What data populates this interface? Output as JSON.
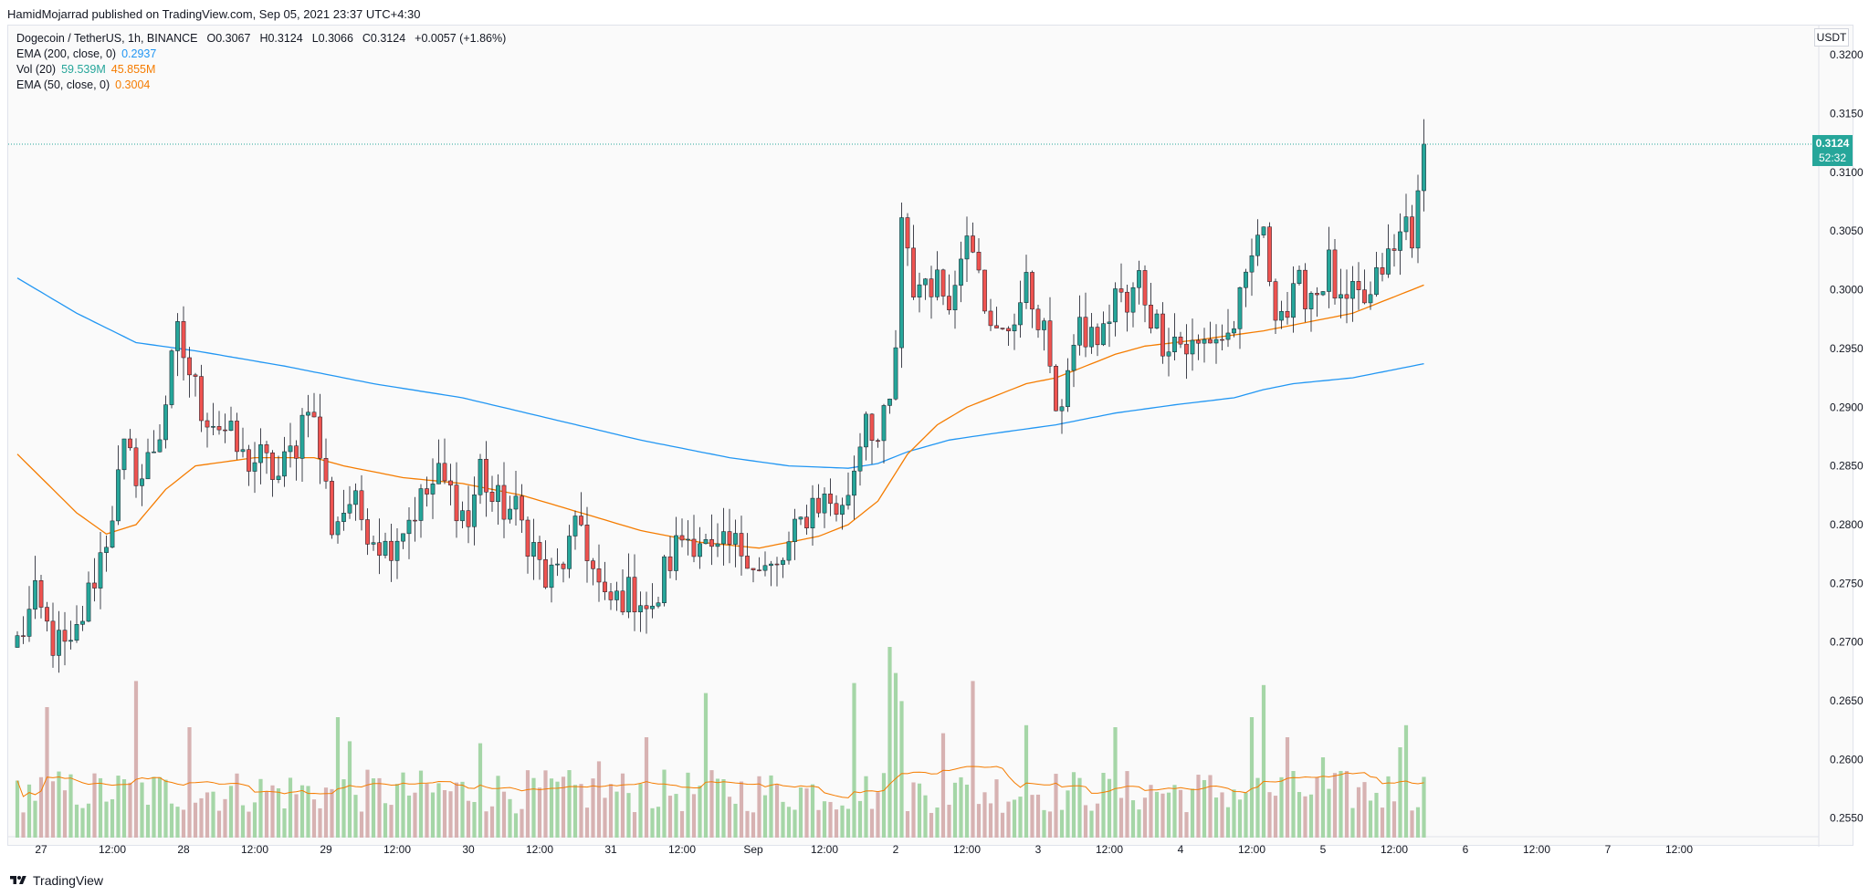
{
  "header": {
    "publish_line": "HamidMojarrad published on TradingView.com, Sep 05, 2021 23:37 UTC+4:30"
  },
  "legend": {
    "symbol": "Dogecoin / TetherUS, 1h, BINANCE",
    "open": "O0.3067",
    "high": "H0.3124",
    "low": "L0.3066",
    "close": "C0.3124",
    "change": "+0.0057 (+1.86%)",
    "ema200_label": "EMA (200, close, 0)",
    "ema200_value": "0.2937",
    "vol_label": "Vol (20)",
    "vol_value": "59.539M",
    "vol_ma_value": "45.855M",
    "ema50_label": "EMA (50, close, 0)",
    "ema50_value": "0.3004"
  },
  "footer": {
    "brand": "TradingView"
  },
  "price_axis": {
    "currency": "USDT"
  },
  "last_price": {
    "value": "0.3124",
    "countdown": "52:32"
  },
  "colors": {
    "up": "#26a69a",
    "down": "#ef5350",
    "vol_up": "#a5d6a7",
    "vol_down": "#d7b2b2",
    "ema200": "#2196f3",
    "ema50": "#f57c00",
    "vol_ma": "#f57c00",
    "axis_text": "#131722",
    "background": "#fafafa"
  },
  "chart_data": {
    "type": "candlestick",
    "interval": "1h",
    "ylim": [
      0.2535,
      0.3225
    ],
    "y_ticks": [
      0.32,
      0.315,
      0.31,
      0.305,
      0.3,
      0.295,
      0.29,
      0.285,
      0.28,
      0.275,
      0.27,
      0.265,
      0.26,
      0.255
    ],
    "y_tick_labels": [
      "0.3200",
      "0.3150",
      "0.3100",
      "0.3050",
      "0.3000",
      "0.2950",
      "0.2900",
      "0.2850",
      "0.2800",
      "0.2750",
      "0.2700",
      "0.2650",
      "0.2600",
      "0.2550"
    ],
    "x_ticks": [
      {
        "label": "27",
        "bar": 4
      },
      {
        "label": "12:00",
        "bar": 16
      },
      {
        "label": "28",
        "bar": 28
      },
      {
        "label": "12:00",
        "bar": 40
      },
      {
        "label": "29",
        "bar": 52
      },
      {
        "label": "12:00",
        "bar": 64
      },
      {
        "label": "30",
        "bar": 76
      },
      {
        "label": "12:00",
        "bar": 88
      },
      {
        "label": "31",
        "bar": 100
      },
      {
        "label": "12:00",
        "bar": 112
      },
      {
        "label": "Sep",
        "bar": 124
      },
      {
        "label": "12:00",
        "bar": 136
      },
      {
        "label": "2",
        "bar": 148
      },
      {
        "label": "12:00",
        "bar": 160
      },
      {
        "label": "3",
        "bar": 172
      },
      {
        "label": "12:00",
        "bar": 184
      },
      {
        "label": "4",
        "bar": 196
      },
      {
        "label": "12:00",
        "bar": 208
      },
      {
        "label": "5",
        "bar": 220
      },
      {
        "label": "12:00",
        "bar": 232
      },
      {
        "label": "6",
        "bar": 244
      },
      {
        "label": "12:00",
        "bar": 256
      },
      {
        "label": "7",
        "bar": 268
      },
      {
        "label": "12:00",
        "bar": 280
      }
    ],
    "last_price": 0.3124,
    "anchors": [
      [
        0,
        0.27
      ],
      [
        3,
        0.2735
      ],
      [
        6,
        0.27
      ],
      [
        9,
        0.269
      ],
      [
        12,
        0.274
      ],
      [
        15,
        0.279
      ],
      [
        18,
        0.286
      ],
      [
        21,
        0.284
      ],
      [
        24,
        0.288
      ],
      [
        27,
        0.296
      ],
      [
        29,
        0.293
      ],
      [
        31,
        0.29
      ],
      [
        35,
        0.288
      ],
      [
        38,
        0.2855
      ],
      [
        41,
        0.2855
      ],
      [
        44,
        0.284
      ],
      [
        47,
        0.287
      ],
      [
        49,
        0.291
      ],
      [
        51,
        0.286
      ],
      [
        53,
        0.28
      ],
      [
        56,
        0.282
      ],
      [
        59,
        0.28
      ],
      [
        62,
        0.278
      ],
      [
        65,
        0.28
      ],
      [
        68,
        0.282
      ],
      [
        71,
        0.284
      ],
      [
        74,
        0.282
      ],
      [
        76,
        0.28
      ],
      [
        78,
        0.285
      ],
      [
        80,
        0.282
      ],
      [
        84,
        0.281
      ],
      [
        87,
        0.278
      ],
      [
        89,
        0.275
      ],
      [
        91,
        0.276
      ],
      [
        93,
        0.278
      ],
      [
        95,
        0.28
      ],
      [
        97,
        0.276
      ],
      [
        99,
        0.273
      ],
      [
        102,
        0.274
      ],
      [
        105,
        0.274
      ],
      [
        107,
        0.272
      ],
      [
        109,
        0.276
      ],
      [
        112,
        0.279
      ],
      [
        115,
        0.279
      ],
      [
        117,
        0.277
      ],
      [
        120,
        0.278
      ],
      [
        123,
        0.278
      ],
      [
        125,
        0.276
      ],
      [
        128,
        0.276
      ],
      [
        131,
        0.279
      ],
      [
        134,
        0.282
      ],
      [
        137,
        0.282
      ],
      [
        139,
        0.281
      ],
      [
        141,
        0.285
      ],
      [
        143,
        0.29
      ],
      [
        145,
        0.287
      ],
      [
        147,
        0.29
      ],
      [
        148,
        0.295
      ],
      [
        149,
        0.305
      ],
      [
        151,
        0.3
      ],
      [
        153,
        0.301
      ],
      [
        156,
        0.3
      ],
      [
        158,
        0.3
      ],
      [
        160,
        0.306
      ],
      [
        162,
        0.303
      ],
      [
        164,
        0.296
      ],
      [
        166,
        0.296
      ],
      [
        168,
        0.298
      ],
      [
        170,
        0.3
      ],
      [
        172,
        0.298
      ],
      [
        174,
        0.294
      ],
      [
        175,
        0.288
      ],
      [
        177,
        0.294
      ],
      [
        179,
        0.296
      ],
      [
        181,
        0.296
      ],
      [
        183,
        0.296
      ],
      [
        185,
        0.3
      ],
      [
        187,
        0.298
      ],
      [
        189,
        0.301
      ],
      [
        191,
        0.298
      ],
      [
        193,
        0.296
      ],
      [
        195,
        0.296
      ],
      [
        197,
        0.295
      ],
      [
        199,
        0.295
      ],
      [
        201,
        0.296
      ],
      [
        204,
        0.296
      ],
      [
        207,
        0.3
      ],
      [
        209,
        0.305
      ],
      [
        210,
        0.304
      ],
      [
        212,
        0.299
      ],
      [
        214,
        0.298
      ],
      [
        216,
        0.3
      ],
      [
        219,
        0.3
      ],
      [
        221,
        0.302
      ],
      [
        223,
        0.298
      ],
      [
        225,
        0.299
      ],
      [
        228,
        0.299
      ],
      [
        230,
        0.302
      ],
      [
        232,
        0.303
      ],
      [
        234,
        0.306
      ],
      [
        235,
        0.305
      ],
      [
        236,
        0.307
      ],
      [
        237,
        0.3124
      ]
    ],
    "ema200_anchors": [
      [
        0,
        0.301
      ],
      [
        10,
        0.298
      ],
      [
        20,
        0.2955
      ],
      [
        30,
        0.2948
      ],
      [
        45,
        0.2935
      ],
      [
        60,
        0.292
      ],
      [
        75,
        0.2908
      ],
      [
        90,
        0.289
      ],
      [
        105,
        0.2872
      ],
      [
        120,
        0.2857
      ],
      [
        130,
        0.285
      ],
      [
        140,
        0.2848
      ],
      [
        145,
        0.2852
      ],
      [
        150,
        0.2862
      ],
      [
        157,
        0.2872
      ],
      [
        165,
        0.2878
      ],
      [
        175,
        0.2885
      ],
      [
        185,
        0.2895
      ],
      [
        195,
        0.2902
      ],
      [
        205,
        0.2908
      ],
      [
        210,
        0.2915
      ],
      [
        215,
        0.292
      ],
      [
        225,
        0.2925
      ],
      [
        237,
        0.2937
      ]
    ],
    "ema50_anchors": [
      [
        0,
        0.286
      ],
      [
        5,
        0.2835
      ],
      [
        10,
        0.281
      ],
      [
        15,
        0.2792
      ],
      [
        20,
        0.28
      ],
      [
        25,
        0.283
      ],
      [
        30,
        0.285
      ],
      [
        40,
        0.2857
      ],
      [
        50,
        0.2857
      ],
      [
        55,
        0.285
      ],
      [
        65,
        0.284
      ],
      [
        75,
        0.2835
      ],
      [
        85,
        0.2825
      ],
      [
        95,
        0.281
      ],
      [
        105,
        0.2795
      ],
      [
        115,
        0.2785
      ],
      [
        125,
        0.278
      ],
      [
        135,
        0.279
      ],
      [
        140,
        0.28
      ],
      [
        145,
        0.282
      ],
      [
        150,
        0.286
      ],
      [
        155,
        0.2885
      ],
      [
        160,
        0.29
      ],
      [
        165,
        0.291
      ],
      [
        170,
        0.292
      ],
      [
        175,
        0.2925
      ],
      [
        180,
        0.2935
      ],
      [
        185,
        0.2945
      ],
      [
        190,
        0.2952
      ],
      [
        195,
        0.2955
      ],
      [
        200,
        0.2958
      ],
      [
        210,
        0.2965
      ],
      [
        215,
        0.297
      ],
      [
        225,
        0.298
      ],
      [
        230,
        0.299
      ],
      [
        237,
        0.3004
      ]
    ],
    "volume_spikes": [
      [
        5,
        0.65
      ],
      [
        20,
        0.78
      ],
      [
        29,
        0.55
      ],
      [
        54,
        0.6
      ],
      [
        56,
        0.48
      ],
      [
        78,
        0.47
      ],
      [
        98,
        0.38
      ],
      [
        106,
        0.5
      ],
      [
        116,
        0.72
      ],
      [
        141,
        0.77
      ],
      [
        147,
        0.95
      ],
      [
        148,
        0.82
      ],
      [
        149,
        0.68
      ],
      [
        156,
        0.52
      ],
      [
        161,
        0.78
      ],
      [
        170,
        0.56
      ],
      [
        185,
        0.55
      ],
      [
        208,
        0.6
      ],
      [
        210,
        0.76
      ],
      [
        214,
        0.5
      ],
      [
        220,
        0.4
      ],
      [
        233,
        0.45
      ],
      [
        234,
        0.56
      ]
    ]
  }
}
